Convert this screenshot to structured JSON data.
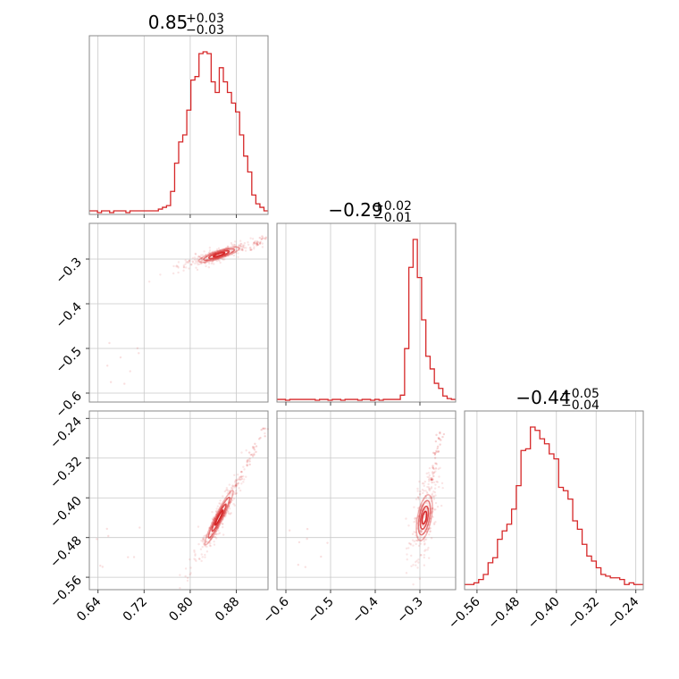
{
  "chart_data": {
    "type": "corner",
    "color": "#d62728",
    "grid": true,
    "parameters": [
      {
        "title": {
          "median": "0.85",
          "plus": "+0.03",
          "minus": "−0.03"
        },
        "range": [
          0.625,
          0.935
        ],
        "ticks": [
          0.64,
          0.72,
          0.8,
          0.88
        ],
        "tick_labels": [
          "0.64",
          "0.72",
          "0.80",
          "0.88"
        ]
      },
      {
        "title": {
          "median": "−0.29",
          "plus": "+0.02",
          "minus": "−0.01"
        },
        "range": [
          -0.62,
          -0.22
        ],
        "ticks": [
          -0.6,
          -0.5,
          -0.4,
          -0.3
        ],
        "tick_labels": [
          "−0.6",
          "−0.5",
          "−0.4",
          "−0.3"
        ]
      },
      {
        "title": {
          "median": "−0.44",
          "plus": "+0.05",
          "minus": "−0.04"
        },
        "range": [
          -0.585,
          -0.225
        ],
        "ticks": [
          -0.56,
          -0.48,
          -0.4,
          -0.32,
          -0.24
        ],
        "tick_labels": [
          "−0.56",
          "−0.48",
          "−0.40",
          "−0.32",
          "−0.24"
        ]
      }
    ],
    "histograms": [
      {
        "bin_edges": [
          0.625,
          0.935
        ],
        "counts": [
          1,
          1,
          0,
          1,
          1,
          0,
          1,
          1,
          1,
          0,
          1,
          1,
          1,
          1,
          1,
          1,
          1,
          2,
          3,
          4,
          12,
          28,
          40,
          44,
          58,
          75,
          77,
          90,
          91,
          90,
          74,
          68,
          82,
          74,
          68,
          62,
          57,
          44,
          32,
          23,
          10,
          5,
          3,
          1
        ]
      },
      {
        "bin_edges": [
          -0.62,
          -0.22
        ],
        "counts": [
          1,
          1,
          0,
          1,
          1,
          1,
          1,
          1,
          1,
          0,
          1,
          1,
          0,
          1,
          1,
          0,
          1,
          1,
          1,
          0,
          1,
          1,
          0,
          1,
          0,
          1,
          1,
          1,
          1,
          6,
          61,
          157,
          190,
          145,
          95,
          52,
          37,
          20,
          14,
          5,
          2,
          1
        ]
      },
      {
        "bin_edges": [
          -0.585,
          -0.225
        ],
        "counts": [
          2,
          2,
          3,
          5,
          8,
          15,
          18,
          29,
          34,
          38,
          47,
          61,
          82,
          83,
          96,
          94,
          89,
          86,
          80,
          77,
          60,
          58,
          53,
          40,
          35,
          26,
          19,
          16,
          12,
          8,
          7,
          6,
          6,
          5,
          2,
          3,
          2,
          2
        ]
      }
    ],
    "correlations": [
      {
        "pair": [
          0,
          1
        ],
        "slope": 0.42,
        "mean": [
          0.85,
          -0.29
        ]
      },
      {
        "pair": [
          0,
          2
        ],
        "slope": 2.3,
        "mean": [
          0.85,
          -0.44
        ]
      },
      {
        "pair": [
          1,
          2
        ],
        "slope": 4.8,
        "mean": [
          -0.29,
          -0.44
        ]
      }
    ]
  }
}
